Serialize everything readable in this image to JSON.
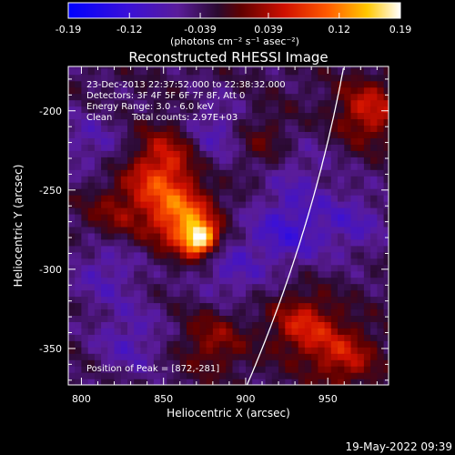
{
  "chart_data": {
    "type": "heatmap",
    "title": "Reconstructed RHESSI Image",
    "xlabel": "Heliocentric X (arcsec)",
    "ylabel": "Heliocentric Y (arcsec)",
    "xlim": [
      792,
      987
    ],
    "ylim": [
      -373,
      -172
    ],
    "x_ticks": [
      800,
      850,
      900,
      950
    ],
    "y_ticks": [
      -200,
      -250,
      -300,
      -350
    ],
    "colorbar": {
      "range": [
        -0.19,
        0.19
      ],
      "ticks": [
        "-0.19",
        "-0.12",
        "-0.039",
        "0.039",
        "0.12",
        "0.19"
      ],
      "units_label": "(photons cm⁻² s⁻¹ asec⁻²)",
      "colormap": "blue-purple-red-yellow-white"
    },
    "annotations": {
      "time_range": "23-Dec-2013 22:37:52.000 to 22:38:32.000",
      "detectors": "Detectors: 3F 4F 5F 6F 7F 8F, Att 0",
      "energy": "Energy Range: 3.0 - 6.0 keV",
      "clean": "Clean",
      "total_counts": "Total counts: 2.97E+03",
      "peak": "Position of Peak = [872,-281]"
    },
    "peak": {
      "x": 872,
      "y": -281,
      "value": 0.19
    },
    "limb_line": "white arc",
    "bright_regions": [
      {
        "x": 862,
        "y": -268,
        "value": 0.14
      },
      {
        "x": 845,
        "y": -245,
        "value": 0.08
      },
      {
        "x": 855,
        "y": -225,
        "value": 0.07
      },
      {
        "x": 935,
        "y": -335,
        "value": 0.09
      },
      {
        "x": 960,
        "y": -355,
        "value": 0.08
      },
      {
        "x": 975,
        "y": -200,
        "value": 0.09
      },
      {
        "x": 880,
        "y": -345,
        "value": 0.06
      },
      {
        "x": 820,
        "y": -265,
        "value": 0.05
      },
      {
        "x": 910,
        "y": -220,
        "value": 0.05
      }
    ],
    "dark_regions": [
      {
        "x": 880,
        "y": -215,
        "value": -0.06
      },
      {
        "x": 815,
        "y": -300,
        "value": -0.05
      },
      {
        "x": 830,
        "y": -345,
        "value": -0.05
      },
      {
        "x": 925,
        "y": -275,
        "value": -0.07
      },
      {
        "x": 965,
        "y": -270,
        "value": -0.05
      },
      {
        "x": 930,
        "y": -235,
        "value": -0.04
      },
      {
        "x": 805,
        "y": -220,
        "value": -0.04
      },
      {
        "x": 890,
        "y": -300,
        "value": -0.05
      }
    ]
  },
  "footer": {
    "timestamp": "19-May-2022 09:39"
  }
}
